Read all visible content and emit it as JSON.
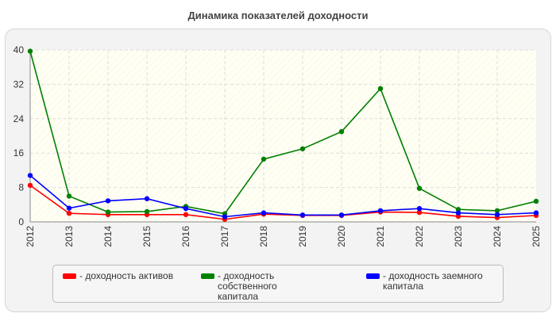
{
  "chart_data": {
    "type": "line",
    "title": "Динамика показателей доходности",
    "xlabel": "",
    "ylabel": "",
    "x": [
      "2012",
      "2013",
      "2014",
      "2015",
      "2016",
      "2017",
      "2018",
      "2019",
      "2020",
      "2021",
      "2022",
      "2023",
      "2024",
      "2025"
    ],
    "ylim": [
      0,
      40
    ],
    "yticks": [
      "0",
      "8",
      "16",
      "24",
      "32",
      "40"
    ],
    "grid": true,
    "legend_position": "bottom",
    "series": [
      {
        "name": "- доходность активов",
        "color": "#ff0000",
        "values": [
          8.5,
          2.0,
          1.7,
          1.7,
          1.7,
          0.6,
          1.8,
          1.5,
          1.5,
          2.3,
          2.2,
          1.3,
          1.0,
          1.5
        ]
      },
      {
        "name": "- доходность собственного капитала",
        "color": "#008000",
        "values": [
          39.7,
          6.0,
          2.3,
          2.4,
          3.6,
          1.9,
          14.6,
          17.0,
          21.0,
          31.0,
          7.8,
          2.9,
          2.6,
          4.8
        ]
      },
      {
        "name": "- доходность заемного капитала",
        "color": "#0000ff",
        "values": [
          10.8,
          3.2,
          4.9,
          5.4,
          3.1,
          1.2,
          2.1,
          1.6,
          1.6,
          2.6,
          3.1,
          2.1,
          1.7,
          2.1
        ]
      }
    ]
  }
}
